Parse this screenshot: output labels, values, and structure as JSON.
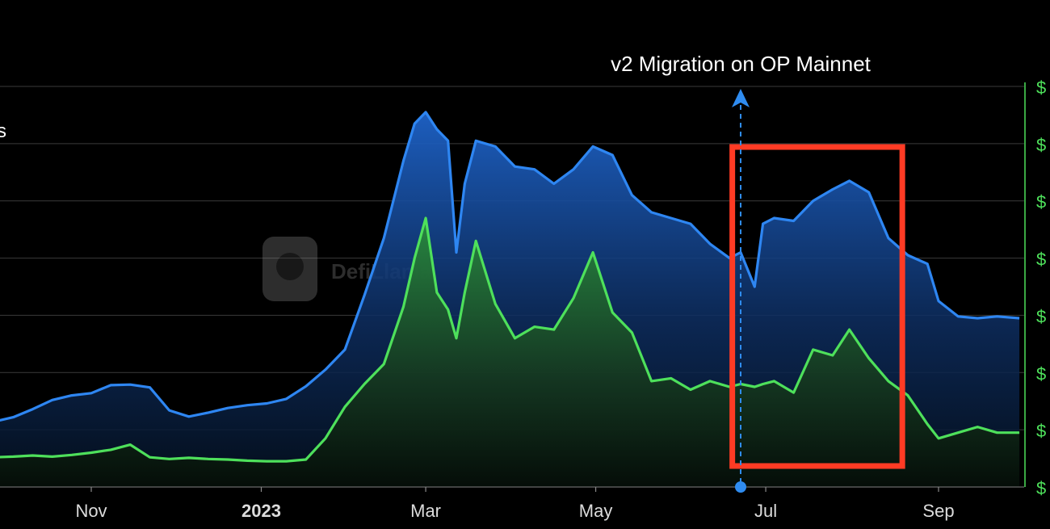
{
  "chart_data": {
    "type": "area",
    "x_ticks": [
      {
        "date": "2022-11-01",
        "label": "Nov",
        "bold": false
      },
      {
        "date": "2023-01-01",
        "label": "2023",
        "bold": true
      },
      {
        "date": "2023-03-01",
        "label": "Mar",
        "bold": false
      },
      {
        "date": "2023-05-01",
        "label": "May",
        "bold": false
      },
      {
        "date": "2023-07-01",
        "label": "Jul",
        "bold": false
      },
      {
        "date": "2023-09-01",
        "label": "Sep",
        "bold": false
      }
    ],
    "x_range": [
      "2022-09-20",
      "2023-09-30"
    ],
    "y_tick_label": "$",
    "y_tick_count": 8,
    "left_axis_fragment": "s",
    "watermark": "DefiLlama",
    "annotation": {
      "text": "v2 Migration on OP Mainnet",
      "date": "2023-06-22",
      "color": "#2f8cf0"
    },
    "highlight_box": {
      "date_start": "2023-06-19",
      "date_end": "2023-08-19",
      "color": "#ff3b24"
    },
    "series": [
      {
        "color": "#2e86f2",
        "values": [
          [
            "2022-09-20",
            11.2
          ],
          [
            "2022-09-27",
            11.4
          ],
          [
            "2022-10-04",
            12.2
          ],
          [
            "2022-10-11",
            13.6
          ],
          [
            "2022-10-18",
            15.2
          ],
          [
            "2022-10-25",
            16.0
          ],
          [
            "2022-11-01",
            16.4
          ],
          [
            "2022-11-08",
            17.8
          ],
          [
            "2022-11-15",
            17.9
          ],
          [
            "2022-11-22",
            17.4
          ],
          [
            "2022-11-29",
            13.4
          ],
          [
            "2022-12-06",
            12.3
          ],
          [
            "2022-12-13",
            13.0
          ],
          [
            "2022-12-20",
            13.8
          ],
          [
            "2022-12-27",
            14.3
          ],
          [
            "2023-01-03",
            14.6
          ],
          [
            "2023-01-10",
            15.4
          ],
          [
            "2023-01-17",
            17.6
          ],
          [
            "2023-01-24",
            20.5
          ],
          [
            "2023-01-31",
            24.0
          ],
          [
            "2023-02-07",
            33.5
          ],
          [
            "2023-02-14",
            43.5
          ],
          [
            "2023-02-21",
            57.0
          ],
          [
            "2023-02-25",
            63.5
          ],
          [
            "2023-03-01",
            65.5
          ],
          [
            "2023-03-05",
            62.5
          ],
          [
            "2023-03-09",
            60.5
          ],
          [
            "2023-03-12",
            41.0
          ],
          [
            "2023-03-15",
            53.0
          ],
          [
            "2023-03-19",
            60.5
          ],
          [
            "2023-03-26",
            59.5
          ],
          [
            "2023-04-02",
            56.0
          ],
          [
            "2023-04-09",
            55.5
          ],
          [
            "2023-04-16",
            53.0
          ],
          [
            "2023-04-23",
            55.5
          ],
          [
            "2023-04-30",
            59.5
          ],
          [
            "2023-05-07",
            58.0
          ],
          [
            "2023-05-14",
            51.0
          ],
          [
            "2023-05-21",
            48.0
          ],
          [
            "2023-05-28",
            47.0
          ],
          [
            "2023-06-04",
            46.0
          ],
          [
            "2023-06-11",
            42.5
          ],
          [
            "2023-06-18",
            40.0
          ],
          [
            "2023-06-22",
            41.0
          ],
          [
            "2023-06-27",
            35.0
          ],
          [
            "2023-06-30",
            46.0
          ],
          [
            "2023-07-04",
            47.0
          ],
          [
            "2023-07-11",
            46.5
          ],
          [
            "2023-07-18",
            50.0
          ],
          [
            "2023-07-25",
            52.0
          ],
          [
            "2023-07-31",
            53.5
          ],
          [
            "2023-08-07",
            51.5
          ],
          [
            "2023-08-14",
            43.5
          ],
          [
            "2023-08-21",
            40.5
          ],
          [
            "2023-08-28",
            39.0
          ],
          [
            "2023-09-01",
            32.5
          ],
          [
            "2023-09-08",
            29.8
          ],
          [
            "2023-09-15",
            29.5
          ],
          [
            "2023-09-22",
            29.8
          ],
          [
            "2023-09-30",
            29.5
          ]
        ]
      },
      {
        "color": "#4ee05b",
        "values": [
          [
            "2022-09-20",
            4.5
          ],
          [
            "2022-09-27",
            5.2
          ],
          [
            "2022-10-04",
            5.3
          ],
          [
            "2022-10-11",
            5.5
          ],
          [
            "2022-10-18",
            5.3
          ],
          [
            "2022-10-25",
            5.6
          ],
          [
            "2022-11-01",
            6.0
          ],
          [
            "2022-11-08",
            6.5
          ],
          [
            "2022-11-15",
            7.4
          ],
          [
            "2022-11-22",
            5.2
          ],
          [
            "2022-11-29",
            4.9
          ],
          [
            "2022-12-06",
            5.1
          ],
          [
            "2022-12-13",
            4.9
          ],
          [
            "2022-12-20",
            4.8
          ],
          [
            "2022-12-27",
            4.6
          ],
          [
            "2023-01-03",
            4.5
          ],
          [
            "2023-01-10",
            4.5
          ],
          [
            "2023-01-17",
            4.8
          ],
          [
            "2023-01-24",
            8.5
          ],
          [
            "2023-01-31",
            14.0
          ],
          [
            "2023-02-07",
            18.0
          ],
          [
            "2023-02-14",
            21.5
          ],
          [
            "2023-02-21",
            31.5
          ],
          [
            "2023-02-25",
            40.0
          ],
          [
            "2023-03-01",
            47.0
          ],
          [
            "2023-03-05",
            34.0
          ],
          [
            "2023-03-09",
            31.0
          ],
          [
            "2023-03-12",
            26.0
          ],
          [
            "2023-03-15",
            34.0
          ],
          [
            "2023-03-19",
            43.0
          ],
          [
            "2023-03-26",
            32.0
          ],
          [
            "2023-04-02",
            26.0
          ],
          [
            "2023-04-09",
            28.0
          ],
          [
            "2023-04-16",
            27.5
          ],
          [
            "2023-04-23",
            33.0
          ],
          [
            "2023-04-30",
            41.0
          ],
          [
            "2023-05-07",
            30.5
          ],
          [
            "2023-05-14",
            27.0
          ],
          [
            "2023-05-21",
            18.5
          ],
          [
            "2023-05-28",
            19.0
          ],
          [
            "2023-06-04",
            17.0
          ],
          [
            "2023-06-11",
            18.5
          ],
          [
            "2023-06-18",
            17.5
          ],
          [
            "2023-06-22",
            18.0
          ],
          [
            "2023-06-27",
            17.5
          ],
          [
            "2023-06-30",
            18.0
          ],
          [
            "2023-07-04",
            18.5
          ],
          [
            "2023-07-11",
            16.5
          ],
          [
            "2023-07-18",
            24.0
          ],
          [
            "2023-07-25",
            23.0
          ],
          [
            "2023-07-31",
            27.5
          ],
          [
            "2023-08-07",
            22.5
          ],
          [
            "2023-08-14",
            18.5
          ],
          [
            "2023-08-21",
            16.0
          ],
          [
            "2023-08-28",
            11.0
          ],
          [
            "2023-09-01",
            8.5
          ],
          [
            "2023-09-08",
            9.5
          ],
          [
            "2023-09-15",
            10.5
          ],
          [
            "2023-09-22",
            9.5
          ],
          [
            "2023-09-30",
            9.5
          ]
        ]
      }
    ]
  }
}
